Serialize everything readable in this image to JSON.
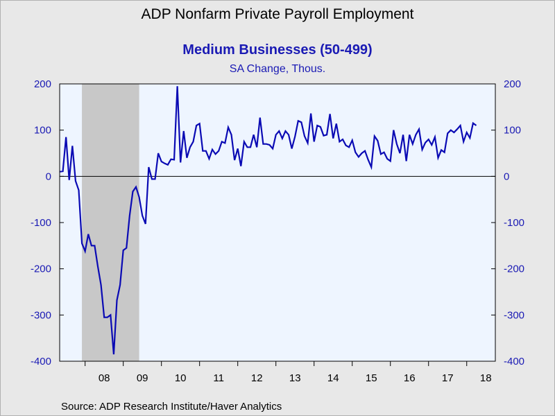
{
  "title": "ADP Nonfarm Private Payroll Employment",
  "subtitle": "Medium Businesses (50-499)",
  "units": "SA Change, Thous.",
  "source": "Source:  ADP Research Institute/Haver Analytics",
  "colors": {
    "line": "#0a0ab4",
    "recession": "#c8c8c8",
    "plot_bg": "#eef5ff",
    "axis_text": "#1a1ab4"
  },
  "chart_data": {
    "type": "line",
    "title": "ADP Nonfarm Private Payroll Employment",
    "subtitle": "Medium Businesses (50-499)",
    "ylabel": "SA Change, Thous.",
    "ylim": [
      -400,
      200
    ],
    "yticks": [
      200,
      100,
      0,
      -100,
      -200,
      -300,
      -400
    ],
    "xlim": [
      "2007-05",
      "2018-10"
    ],
    "xticks": [
      {
        "label": "08",
        "x": "2008-07"
      },
      {
        "label": "09",
        "x": "2009-07"
      },
      {
        "label": "10",
        "x": "2010-07"
      },
      {
        "label": "11",
        "x": "2011-07"
      },
      {
        "label": "12",
        "x": "2012-07"
      },
      {
        "label": "13",
        "x": "2013-07"
      },
      {
        "label": "14",
        "x": "2014-07"
      },
      {
        "label": "15",
        "x": "2015-07"
      },
      {
        "label": "16",
        "x": "2016-07"
      },
      {
        "label": "17",
        "x": "2017-07"
      },
      {
        "label": "18",
        "x": "2018-07"
      }
    ],
    "recession": {
      "start": "2007-12",
      "end": "2009-06"
    },
    "zero_line": true,
    "series": [
      {
        "start": "2007-05",
        "frequency": "monthly",
        "values": [
          10,
          11,
          85,
          -8,
          66,
          -10,
          -30,
          -145,
          -162,
          -125,
          -150,
          -150,
          -195,
          -235,
          -305,
          -305,
          -300,
          -385,
          -268,
          -235,
          -160,
          -155,
          -85,
          -33,
          -23,
          -45,
          -85,
          -103,
          20,
          -6,
          -6,
          50,
          32,
          28,
          25,
          37,
          36,
          195,
          30,
          98,
          40,
          63,
          75,
          110,
          114,
          55,
          55,
          38,
          58,
          48,
          55,
          75,
          72,
          106,
          90,
          35,
          60,
          22,
          75,
          63,
          63,
          90,
          63,
          127,
          70,
          70,
          68,
          60,
          90,
          98,
          82,
          98,
          90,
          60,
          86,
          120,
          117,
          87,
          72,
          136,
          75,
          110,
          107,
          88,
          90,
          135,
          82,
          114,
          75,
          80,
          67,
          63,
          78,
          52,
          42,
          50,
          55,
          36,
          20,
          87,
          77,
          48,
          52,
          38,
          33,
          100,
          70,
          50,
          90,
          33,
          90,
          70,
          90,
          102,
          58,
          73,
          80,
          68,
          85,
          40,
          57,
          52,
          93,
          100,
          95,
          102,
          110,
          75,
          95,
          83,
          115,
          110
        ]
      }
    ]
  }
}
